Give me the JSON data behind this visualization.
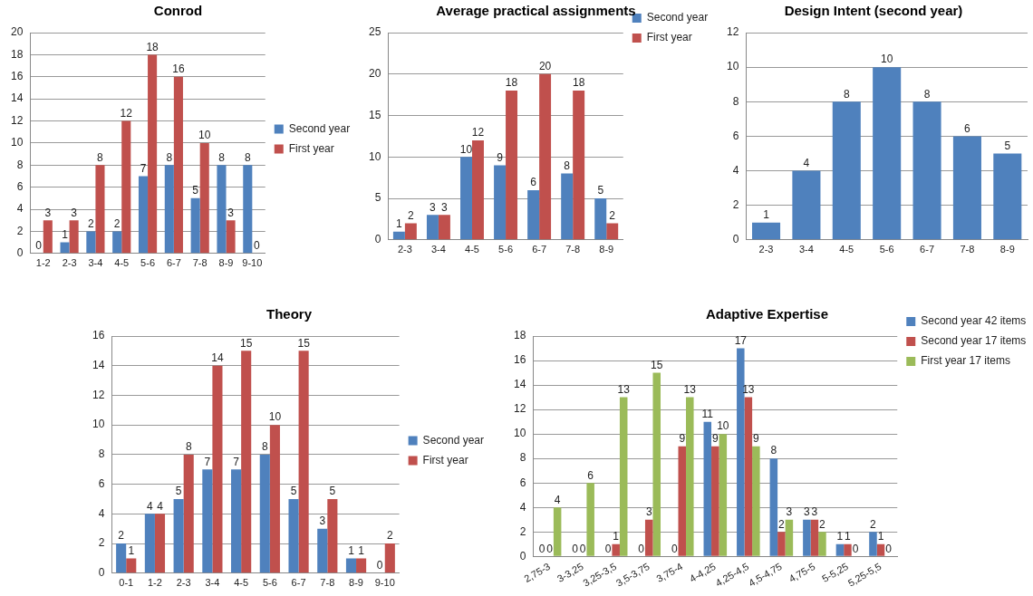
{
  "chart_data": [
    {
      "type": "bar",
      "title": "Conrod",
      "categories": [
        "1-2",
        "2-3",
        "3-4",
        "4-5",
        "5-6",
        "6-7",
        "7-8",
        "8-9",
        "9-10"
      ],
      "series": [
        {
          "name": "Second year",
          "color": "#4f81bd",
          "values": [
            0,
            1,
            2,
            2,
            7,
            8,
            5,
            8,
            8
          ]
        },
        {
          "name": "First year",
          "color": "#c0504d",
          "values": [
            3,
            3,
            8,
            12,
            18,
            16,
            10,
            3,
            0
          ]
        }
      ],
      "ylim": [
        0,
        20
      ],
      "yticks": [
        0,
        2,
        4,
        6,
        8,
        10,
        12,
        14,
        16,
        18,
        20
      ],
      "grid": "y",
      "legend": "right",
      "data_labels": true
    },
    {
      "type": "bar",
      "title": "Average practical assignments",
      "categories": [
        "2-3",
        "3-4",
        "4-5",
        "5-6",
        "6-7",
        "7-8",
        "8-9"
      ],
      "series": [
        {
          "name": "Second year",
          "color": "#4f81bd",
          "values": [
            1,
            3,
            10,
            9,
            6,
            8,
            5
          ]
        },
        {
          "name": "First year",
          "color": "#c0504d",
          "values": [
            2,
            3,
            12,
            18,
            20,
            18,
            2
          ]
        }
      ],
      "ylim": [
        0,
        25
      ],
      "yticks": [
        0,
        5,
        10,
        15,
        20,
        25
      ],
      "grid": "y",
      "legend": "top right",
      "data_labels": true
    },
    {
      "type": "bar",
      "title": "Design Intent (second year)",
      "categories": [
        "2-3",
        "3-4",
        "4-5",
        "5-6",
        "6-7",
        "7-8",
        "8-9"
      ],
      "series": [
        {
          "color": "#4f81bd",
          "values": [
            1,
            4,
            8,
            10,
            8,
            6,
            5
          ]
        }
      ],
      "ylim": [
        0,
        12
      ],
      "yticks": [
        0,
        2,
        4,
        6,
        8,
        10,
        12
      ],
      "grid": "y",
      "data_labels": true
    },
    {
      "type": "bar",
      "title": "Theory",
      "categories": [
        "0-1",
        "1-2",
        "2-3",
        "3-4",
        "4-5",
        "5-6",
        "6-7",
        "7-8",
        "8-9",
        "9-10"
      ],
      "series": [
        {
          "name": "Second year",
          "color": "#4f81bd",
          "values": [
            2,
            4,
            5,
            7,
            7,
            8,
            5,
            3,
            1,
            0
          ]
        },
        {
          "name": "First year",
          "color": "#c0504d",
          "values": [
            1,
            4,
            8,
            14,
            15,
            10,
            15,
            5,
            1,
            2
          ]
        }
      ],
      "ylim": [
        0,
        16
      ],
      "yticks": [
        0,
        2,
        4,
        6,
        8,
        10,
        12,
        14,
        16
      ],
      "grid": "y",
      "legend": "right",
      "data_labels": true
    },
    {
      "type": "bar",
      "title": "Adaptive Expertise",
      "categories": [
        "2,75-3",
        "3-3,25",
        "3,25-3,5",
        "3,5-3,75",
        "3,75-4",
        "4-4,25",
        "4,25-4,5",
        "4,5-4,75",
        "4,75-5",
        "5-5,25",
        "5,25-5,5"
      ],
      "series": [
        {
          "name": "Second year 42 items",
          "color": "#4f81bd",
          "values": [
            0,
            0,
            0,
            0,
            0,
            11,
            17,
            8,
            3,
            1,
            2
          ]
        },
        {
          "name": "Second year 17 items",
          "color": "#c0504d",
          "values": [
            0,
            0,
            1,
            3,
            9,
            9,
            13,
            2,
            3,
            1,
            1
          ]
        },
        {
          "name": "First year 17 items",
          "color": "#9bbb59",
          "values": [
            4,
            6,
            13,
            15,
            13,
            10,
            9,
            3,
            2,
            0,
            0
          ]
        }
      ],
      "ylim": [
        0,
        18
      ],
      "yticks": [
        0,
        2,
        4,
        6,
        8,
        10,
        12,
        14,
        16,
        18
      ],
      "grid": "y",
      "legend": "top right",
      "data_labels": true
    }
  ]
}
